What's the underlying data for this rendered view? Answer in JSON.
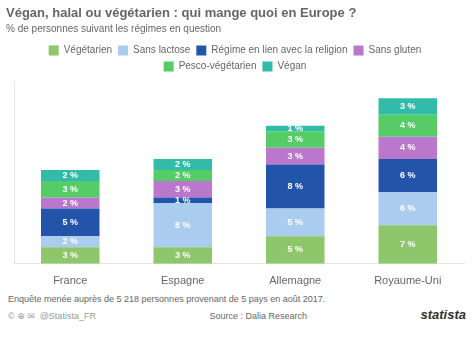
{
  "chart_data": {
    "type": "bar",
    "stacked": true,
    "title": "Végan, halal ou végétarien : qui mange quoi en Europe ?",
    "subtitle": "% de personnes suivant les régimes en question",
    "categories": [
      "France",
      "Espagne",
      "Allemagne",
      "Royaume-Uni"
    ],
    "series": [
      {
        "name": "Végétarien",
        "color": "#8dc66b",
        "values": [
          3,
          3,
          5,
          7
        ],
        "value_labels": [
          "3 %",
          "3 %",
          "5 %",
          "7 %"
        ]
      },
      {
        "name": "Sans lactose",
        "color": "#aaccee",
        "values": [
          2,
          8,
          5,
          6
        ],
        "value_labels": [
          "2 %",
          "8 %",
          "5 %",
          "6 %"
        ]
      },
      {
        "name": "Régime en lien avec la religion",
        "color": "#2255aa",
        "values": [
          5,
          1,
          8,
          6
        ],
        "value_labels": [
          "5 %",
          "1 %",
          "8 %",
          "6 %"
        ]
      },
      {
        "name": "Sans gluten",
        "color": "#bb77cc",
        "values": [
          2,
          3,
          3,
          4
        ],
        "value_labels": [
          "2 %",
          "3 %",
          "3 %",
          "4 %"
        ]
      },
      {
        "name": "Pesco-végétarien",
        "color": "#55cc66",
        "values": [
          3,
          2,
          3,
          4
        ],
        "value_labels": [
          "3 %",
          "2 %",
          "3 %",
          "4 %"
        ]
      },
      {
        "name": "Végan",
        "color": "#33bbaa",
        "values": [
          2,
          2,
          1,
          3
        ],
        "value_labels": [
          "2 %",
          "2 %",
          "1 %",
          "3 %"
        ]
      }
    ],
    "ylim": [
      0,
      33
    ],
    "data_labels": true,
    "tick_labels": "x",
    "grid": false,
    "legend": "top",
    "annotations": [
      "Enquête menée auprès de 5 218 personnes provenant de 5 pays en août 2017.",
      "Source : Dalia Research",
      "statista",
      "© ⊕ ✉",
      "@Statista_FR"
    ]
  }
}
